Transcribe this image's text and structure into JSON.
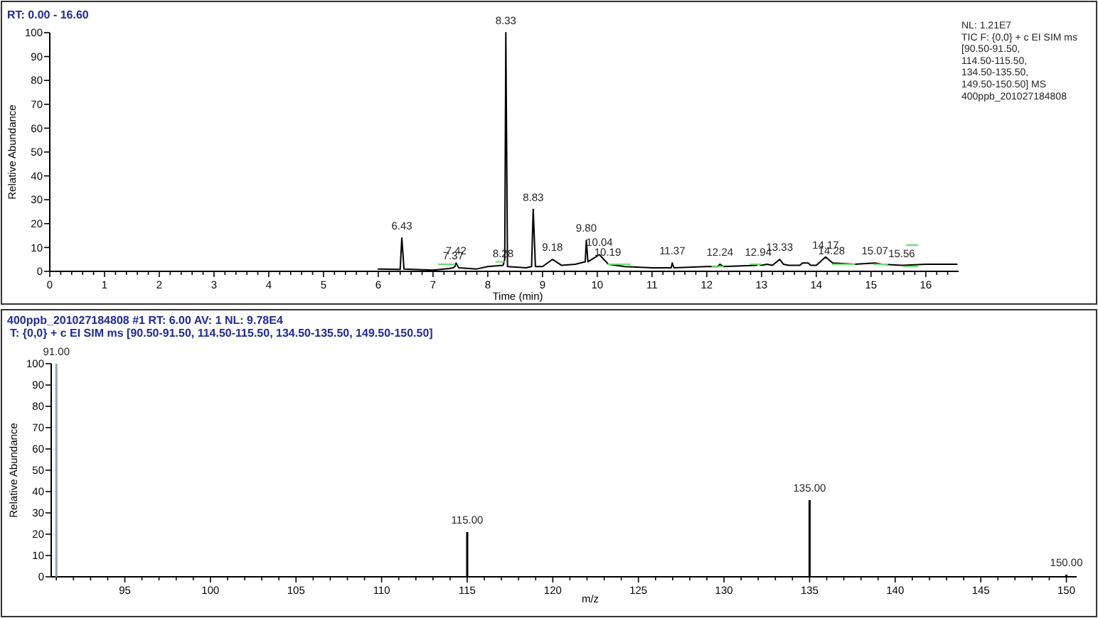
{
  "chart_data": [
    {
      "type": "line",
      "title": "RT: 0.00 - 16.60",
      "xlabel": "Time (min)",
      "ylabel": "Relative Abundance",
      "series": [
        {
          "color": "#000000",
          "x": [
            6.0,
            6.4,
            6.43,
            6.47,
            7.0,
            7.3,
            7.37,
            7.4,
            7.42,
            7.47,
            7.8,
            8.0,
            8.28,
            8.31,
            8.33,
            8.36,
            8.7,
            8.8,
            8.83,
            8.87,
            9.0,
            9.18,
            9.35,
            9.6,
            9.78,
            9.8,
            9.83,
            9.9,
            10.04,
            10.2,
            10.5,
            11.0,
            11.35,
            11.37,
            11.4,
            12.0,
            12.2,
            12.24,
            12.3,
            12.9,
            12.94,
            13.0,
            13.1,
            13.2,
            13.33,
            13.4,
            13.5,
            13.7,
            13.75,
            13.85,
            13.9,
            14.0,
            14.17,
            14.3,
            14.7,
            15.07,
            15.2,
            15.56,
            16.0,
            16.57
          ],
          "values": [
            1,
            0.8,
            14,
            1,
            0.5,
            1.2,
            1.5,
            2,
            3.5,
            1.5,
            1,
            2,
            2.5,
            5,
            100,
            2,
            1.5,
            2,
            26,
            2,
            2,
            5,
            2.5,
            3,
            4,
            13,
            4,
            5,
            7,
            3,
            2,
            1.5,
            1.5,
            3.5,
            1.5,
            2,
            2,
            3,
            2,
            2.5,
            3,
            2.5,
            3,
            2.5,
            5,
            3,
            2.5,
            2.5,
            3.5,
            3.5,
            2.5,
            2.5,
            6,
            3.5,
            3,
            3.5,
            3,
            2.5,
            3,
            3
          ]
        },
        {
          "color": "#66dd66",
          "x": [
            7.1,
            7.4
          ],
          "values": [
            3,
            3
          ]
        },
        {
          "color": "#66dd66",
          "x": [
            8.15,
            8.3
          ],
          "values": [
            4,
            4
          ]
        },
        {
          "color": "#66dd66",
          "x": [
            10.2,
            10.6
          ],
          "values": [
            3,
            3
          ]
        },
        {
          "color": "#66dd66",
          "x": [
            12.1,
            12.3
          ],
          "values": [
            2,
            2
          ]
        },
        {
          "color": "#66dd66",
          "x": [
            12.8,
            13.0
          ],
          "values": [
            3,
            3
          ]
        },
        {
          "color": "#66dd66",
          "x": [
            14.3,
            14.7
          ],
          "values": [
            3,
            3
          ]
        },
        {
          "color": "#66dd66",
          "x": [
            15.05,
            15.3
          ],
          "values": [
            3,
            3
          ]
        },
        {
          "color": "#66dd66",
          "x": [
            15.6,
            15.85
          ],
          "values": [
            2,
            2
          ]
        },
        {
          "color": "#66dd66",
          "x": [
            15.65,
            15.85
          ],
          "values": [
            11,
            11
          ]
        }
      ],
      "xlim": [
        0,
        16.6
      ],
      "ylim": [
        0,
        100
      ],
      "xticks": [
        0,
        {
          "value": 0.2,
          "label": null
        },
        {
          "value": 0.4,
          "label": null
        },
        {
          "value": 0.6,
          "label": null
        },
        {
          "value": 0.8,
          "label": null
        },
        1,
        {
          "value": 1.2,
          "label": null
        },
        {
          "value": 1.4,
          "label": null
        },
        {
          "value": 1.6,
          "label": null
        },
        {
          "value": 1.8,
          "label": null
        },
        2,
        {
          "value": 2.2,
          "label": null
        },
        {
          "value": 2.4,
          "label": null
        },
        {
          "value": 2.6,
          "label": null
        },
        {
          "value": 2.8,
          "label": null
        },
        3,
        {
          "value": 3.2,
          "label": null
        },
        {
          "value": 3.4,
          "label": null
        },
        {
          "value": 3.6,
          "label": null
        },
        {
          "value": 3.8,
          "label": null
        },
        4,
        {
          "value": 4.2,
          "label": null
        },
        {
          "value": 4.4,
          "label": null
        },
        {
          "value": 4.6,
          "label": null
        },
        {
          "value": 4.8,
          "label": null
        },
        5,
        {
          "value": 5.2,
          "label": null
        },
        {
          "value": 5.4,
          "label": null
        },
        {
          "value": 5.6,
          "label": null
        },
        {
          "value": 5.8,
          "label": null
        },
        6,
        {
          "value": 6.2,
          "label": null
        },
        {
          "value": 6.4,
          "label": null
        },
        {
          "value": 6.6,
          "label": null
        },
        {
          "value": 6.8,
          "label": null
        },
        7,
        {
          "value": 7.2,
          "label": null
        },
        {
          "value": 7.4,
          "label": null
        },
        {
          "value": 7.6,
          "label": null
        },
        {
          "value": 7.8,
          "label": null
        },
        8,
        {
          "value": 8.2,
          "label": null
        },
        {
          "value": 8.4,
          "label": null
        },
        {
          "value": 8.6,
          "label": null
        },
        {
          "value": 8.8,
          "label": null
        },
        9,
        {
          "value": 9.2,
          "label": null
        },
        {
          "value": 9.4,
          "label": null
        },
        {
          "value": 9.6,
          "label": null
        },
        {
          "value": 9.8,
          "label": null
        },
        10,
        {
          "value": 10.2,
          "label": null
        },
        {
          "value": 10.4,
          "label": null
        },
        {
          "value": 10.6,
          "label": null
        },
        {
          "value": 10.8,
          "label": null
        },
        11,
        {
          "value": 11.2,
          "label": null
        },
        {
          "value": 11.4,
          "label": null
        },
        {
          "value": 11.6,
          "label": null
        },
        {
          "value": 11.8,
          "label": null
        },
        12,
        {
          "value": 12.2,
          "label": null
        },
        {
          "value": 12.4,
          "label": null
        },
        {
          "value": 12.6,
          "label": null
        },
        {
          "value": 12.8,
          "label": null
        },
        13,
        {
          "value": 13.2,
          "label": null
        },
        {
          "value": 13.4,
          "label": null
        },
        {
          "value": 13.6,
          "label": null
        },
        {
          "value": 13.8,
          "label": null
        },
        14,
        {
          "value": 14.2,
          "label": null
        },
        {
          "value": 14.4,
          "label": null
        },
        {
          "value": 14.6,
          "label": null
        },
        {
          "value": 14.8,
          "label": null
        },
        15,
        {
          "value": 15.2,
          "label": null
        },
        {
          "value": 15.4,
          "label": null
        },
        {
          "value": 15.6,
          "label": null
        },
        {
          "value": 15.8,
          "label": null
        },
        16,
        {
          "value": 16.2,
          "label": null
        },
        {
          "value": 16.4,
          "label": null
        }
      ],
      "yticks": [
        0,
        10,
        20,
        30,
        40,
        50,
        60,
        70,
        80,
        90,
        100
      ],
      "annotations": [
        {
          "text": "6.43",
          "x": 6.43,
          "y": 14
        },
        {
          "text": "7.37",
          "x": 7.37,
          "y": 1.5
        },
        {
          "text": "7.42",
          "x": 7.42,
          "y": 3.5
        },
        {
          "text": "8.28",
          "x": 8.28,
          "y": 2.5
        },
        {
          "text": "8.33",
          "x": 8.33,
          "y": 100
        },
        {
          "text": "8.83",
          "x": 8.83,
          "y": 26
        },
        {
          "text": "9.18",
          "x": 9.18,
          "y": 5
        },
        {
          "text": "9.80",
          "x": 9.8,
          "y": 13
        },
        {
          "text": "10.04",
          "x": 10.04,
          "y": 7
        },
        {
          "text": "10.19",
          "x": 10.19,
          "y": 3
        },
        {
          "text": "11.37",
          "x": 11.37,
          "y": 3.5
        },
        {
          "text": "12.24",
          "x": 12.24,
          "y": 3
        },
        {
          "text": "12.94",
          "x": 12.94,
          "y": 3
        },
        {
          "text": "13.33",
          "x": 13.33,
          "y": 5
        },
        {
          "text": "14.17",
          "x": 14.17,
          "y": 6
        },
        {
          "text": "14.28",
          "x": 14.28,
          "y": 3.5
        },
        {
          "text": "15.07",
          "x": 15.07,
          "y": 3.5
        },
        {
          "text": "15.56",
          "x": 15.56,
          "y": 2.5
        },
        "NL: 1.21E7",
        "TIC F: {0,0} + c EI SIM ms",
        "[90.50-91.50,",
        "114.50-115.50,",
        "134.50-135.50,",
        "149.50-150.50] MS",
        "400ppb_201027184808"
      ]
    },
    {
      "type": "bar",
      "title": "400ppb_201027184808 #1  RT: 6.00  AV: 1  NL: 9.78E4",
      "subtitle": "T: {0,0}  + c EI SIM ms [90.50-91.50, 114.50-115.50, 134.50-135.50, 149.50-150.50]",
      "xlabel": "m/z",
      "ylabel": "Relative Abundance",
      "x": [
        91,
        115,
        135,
        150
      ],
      "values": [
        100,
        21,
        36,
        1
      ],
      "colors": [
        "#8fa8b0",
        "#000000",
        "#000000",
        "#000000"
      ],
      "xlim": [
        90.7,
        150.6
      ],
      "ylim": [
        0,
        100
      ],
      "xticks": [
        {
          "value": 91,
          "label": null
        },
        {
          "value": 92,
          "label": null
        },
        {
          "value": 93,
          "label": null
        },
        {
          "value": 94,
          "label": null
        },
        95,
        {
          "value": 96,
          "label": null
        },
        {
          "value": 97,
          "label": null
        },
        {
          "value": 98,
          "label": null
        },
        {
          "value": 99,
          "label": null
        },
        100,
        {
          "value": 101,
          "label": null
        },
        {
          "value": 102,
          "label": null
        },
        {
          "value": 103,
          "label": null
        },
        {
          "value": 104,
          "label": null
        },
        105,
        {
          "value": 106,
          "label": null
        },
        {
          "value": 107,
          "label": null
        },
        {
          "value": 108,
          "label": null
        },
        {
          "value": 109,
          "label": null
        },
        110,
        {
          "value": 111,
          "label": null
        },
        {
          "value": 112,
          "label": null
        },
        {
          "value": 113,
          "label": null
        },
        {
          "value": 114,
          "label": null
        },
        115,
        {
          "value": 116,
          "label": null
        },
        {
          "value": 117,
          "label": null
        },
        {
          "value": 118,
          "label": null
        },
        {
          "value": 119,
          "label": null
        },
        120,
        {
          "value": 121,
          "label": null
        },
        {
          "value": 122,
          "label": null
        },
        {
          "value": 123,
          "label": null
        },
        {
          "value": 124,
          "label": null
        },
        125,
        {
          "value": 126,
          "label": null
        },
        {
          "value": 127,
          "label": null
        },
        {
          "value": 128,
          "label": null
        },
        {
          "value": 129,
          "label": null
        },
        130,
        {
          "value": 131,
          "label": null
        },
        {
          "value": 132,
          "label": null
        },
        {
          "value": 133,
          "label": null
        },
        {
          "value": 134,
          "label": null
        },
        135,
        {
          "value": 136,
          "label": null
        },
        {
          "value": 137,
          "label": null
        },
        {
          "value": 138,
          "label": null
        },
        {
          "value": 139,
          "label": null
        },
        140,
        {
          "value": 141,
          "label": null
        },
        {
          "value": 142,
          "label": null
        },
        {
          "value": 143,
          "label": null
        },
        {
          "value": 144,
          "label": null
        },
        145,
        {
          "value": 146,
          "label": null
        },
        {
          "value": 147,
          "label": null
        },
        {
          "value": 148,
          "label": null
        },
        {
          "value": 149,
          "label": null
        },
        150
      ],
      "yticks": [
        0,
        10,
        20,
        30,
        40,
        50,
        60,
        70,
        80,
        90,
        100
      ],
      "annotations": [
        {
          "text": "91.00",
          "x": 91,
          "y": 100
        },
        {
          "text": "115.00",
          "x": 115,
          "y": 21
        },
        {
          "text": "135.00",
          "x": 135,
          "y": 36
        },
        {
          "text": "150.00",
          "x": 150,
          "y": 1
        }
      ]
    }
  ]
}
